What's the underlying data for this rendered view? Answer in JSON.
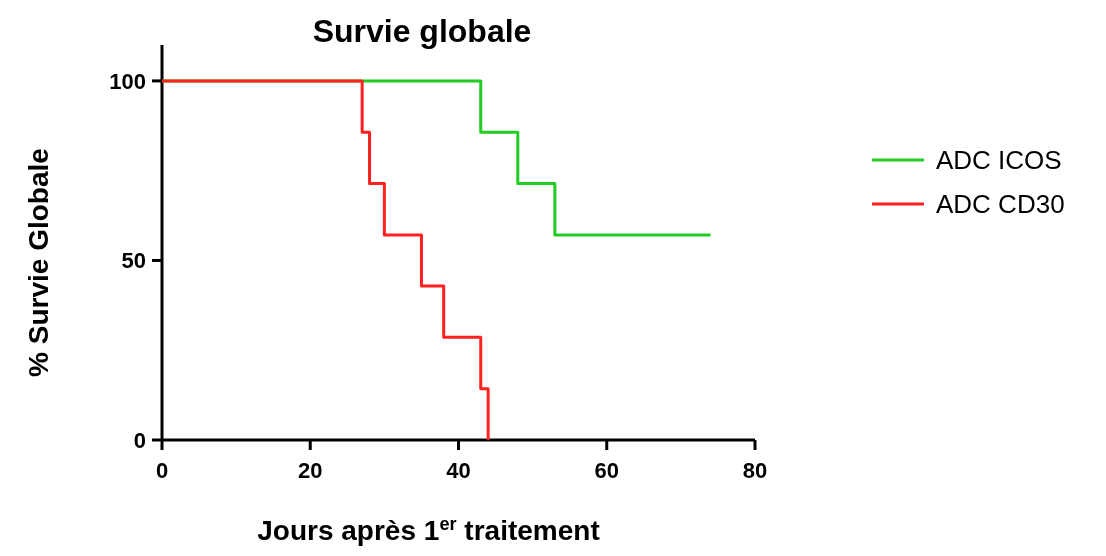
{
  "chart_data": {
    "type": "step",
    "title": "Survie globale",
    "xlabel": "Jours après 1$^{er}$ traitement",
    "ylabel": "% Survie Globale",
    "xlim": [
      0,
      80
    ],
    "xticks": [
      0,
      20,
      40,
      60,
      80
    ],
    "ylim": [
      0,
      110
    ],
    "yticks": [
      0,
      50,
      100
    ],
    "grid": false,
    "legend": "right",
    "series": [
      {
        "name": "ADC ICOS",
        "color": "#22cc22",
        "x": [
          0,
          43,
          48,
          53,
          74
        ],
        "values": [
          100,
          85.7,
          71.4,
          57.1,
          57.1
        ]
      },
      {
        "name": "ADC CD30",
        "color": "#ff2020",
        "x": [
          0,
          27,
          28,
          30,
          35,
          38,
          43,
          44
        ],
        "values": [
          100,
          85.7,
          71.4,
          57.1,
          42.9,
          28.6,
          14.3,
          0
        ]
      }
    ]
  }
}
